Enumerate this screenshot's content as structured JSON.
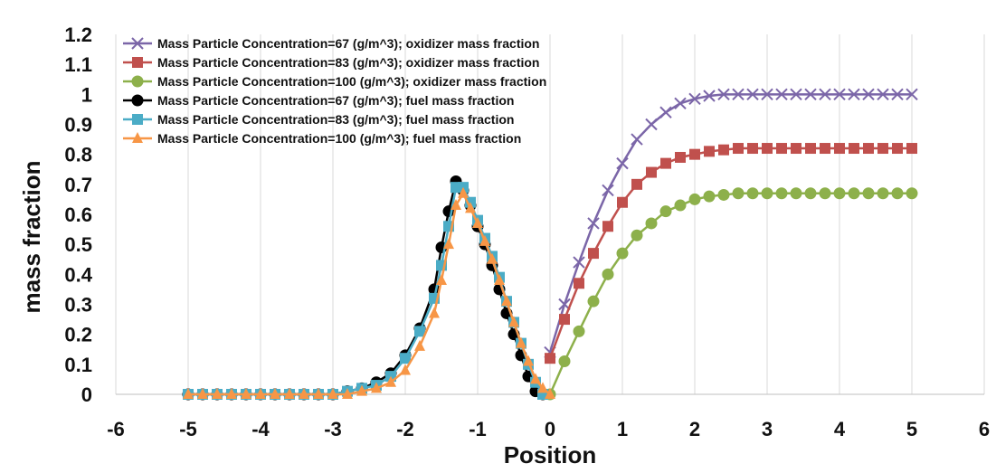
{
  "chart_data": {
    "type": "line",
    "xlabel": "Position",
    "ylabel": "mass fraction",
    "xlim": [
      -6,
      6
    ],
    "ylim": [
      0,
      1.2
    ],
    "xticks": [
      -6,
      -5,
      -4,
      -3,
      -2,
      -1,
      0,
      1,
      2,
      3,
      4,
      5,
      6
    ],
    "yticks": [
      0,
      0.1,
      0.2,
      0.3,
      0.4,
      0.5,
      0.6,
      0.7,
      0.8,
      0.9,
      1,
      1.1,
      1.2
    ],
    "ytick_labels": [
      "0",
      "0.1",
      "0.2",
      "0.3",
      "0.4",
      "0.5",
      "0.6",
      "0.7",
      "0.8",
      "0.9",
      "1",
      "1.1",
      "1.2"
    ],
    "grid": "vertical",
    "legend_position": "top-left",
    "series": [
      {
        "name": "Mass Particle Concentration=67 (g/m^3); oxidizer mass fraction",
        "color": "#7b66a8",
        "marker": "x",
        "x": [
          0,
          0.2,
          0.4,
          0.6,
          0.8,
          1.0,
          1.2,
          1.4,
          1.6,
          1.8,
          2.0,
          2.2,
          2.4,
          2.6,
          2.8,
          3.0,
          3.2,
          3.4,
          3.6,
          3.8,
          4.0,
          4.2,
          4.4,
          4.6,
          4.8,
          5.0
        ],
        "y": [
          0.14,
          0.3,
          0.44,
          0.57,
          0.68,
          0.77,
          0.85,
          0.9,
          0.94,
          0.97,
          0.985,
          0.995,
          1.0,
          1.0,
          1.0,
          1.0,
          1.0,
          1.0,
          1.0,
          1.0,
          1.0,
          1.0,
          1.0,
          1.0,
          1.0,
          1.0
        ]
      },
      {
        "name": "Mass Particle Concentration=83 (g/m^3); oxidizer mass fraction",
        "color": "#c0504d",
        "marker": "square",
        "x": [
          0,
          0.2,
          0.4,
          0.6,
          0.8,
          1.0,
          1.2,
          1.4,
          1.6,
          1.8,
          2.0,
          2.2,
          2.4,
          2.6,
          2.8,
          3.0,
          3.2,
          3.4,
          3.6,
          3.8,
          4.0,
          4.2,
          4.4,
          4.6,
          4.8,
          5.0
        ],
        "y": [
          0.12,
          0.25,
          0.37,
          0.47,
          0.56,
          0.64,
          0.7,
          0.74,
          0.77,
          0.79,
          0.8,
          0.81,
          0.815,
          0.82,
          0.82,
          0.82,
          0.82,
          0.82,
          0.82,
          0.82,
          0.82,
          0.82,
          0.82,
          0.82,
          0.82,
          0.82
        ]
      },
      {
        "name": "Mass Particle Concentration=100 (g/m^3); oxidizer mass fraction",
        "color": "#8db04b",
        "marker": "circle",
        "x": [
          0,
          0.2,
          0.4,
          0.6,
          0.8,
          1.0,
          1.2,
          1.4,
          1.6,
          1.8,
          2.0,
          2.2,
          2.4,
          2.6,
          2.8,
          3.0,
          3.2,
          3.4,
          3.6,
          3.8,
          4.0,
          4.2,
          4.4,
          4.6,
          4.8,
          5.0
        ],
        "y": [
          0.0,
          0.11,
          0.21,
          0.31,
          0.4,
          0.47,
          0.53,
          0.57,
          0.61,
          0.63,
          0.65,
          0.66,
          0.665,
          0.67,
          0.67,
          0.67,
          0.67,
          0.67,
          0.67,
          0.67,
          0.67,
          0.67,
          0.67,
          0.67,
          0.67,
          0.67
        ]
      },
      {
        "name": "Mass Particle Concentration=67 (g/m^3); fuel mass fraction",
        "color": "#000000",
        "marker": "circle",
        "x": [
          -5.0,
          -4.8,
          -4.6,
          -4.4,
          -4.2,
          -4.0,
          -3.8,
          -3.6,
          -3.4,
          -3.2,
          -3.0,
          -2.8,
          -2.6,
          -2.4,
          -2.2,
          -2.0,
          -1.8,
          -1.6,
          -1.5,
          -1.4,
          -1.3,
          -1.2,
          -1.1,
          -1.0,
          -0.9,
          -0.8,
          -0.7,
          -0.6,
          -0.5,
          -0.4,
          -0.3,
          -0.2,
          -0.1
        ],
        "y": [
          0.0,
          0.0,
          0.0,
          0.0,
          0.0,
          0.0,
          0.0,
          0.0,
          0.0,
          0.0,
          0.0,
          0.01,
          0.02,
          0.04,
          0.07,
          0.13,
          0.22,
          0.35,
          0.49,
          0.61,
          0.71,
          0.68,
          0.63,
          0.56,
          0.5,
          0.43,
          0.35,
          0.27,
          0.2,
          0.13,
          0.06,
          0.01,
          0.0
        ]
      },
      {
        "name": "Mass Particle Concentration=83 (g/m^3); fuel mass fraction",
        "color": "#4bacc6",
        "marker": "square",
        "x": [
          -5.0,
          -4.8,
          -4.6,
          -4.4,
          -4.2,
          -4.0,
          -3.8,
          -3.6,
          -3.4,
          -3.2,
          -3.0,
          -2.8,
          -2.6,
          -2.4,
          -2.2,
          -2.0,
          -1.8,
          -1.6,
          -1.5,
          -1.4,
          -1.3,
          -1.2,
          -1.1,
          -1.0,
          -0.9,
          -0.8,
          -0.7,
          -0.6,
          -0.5,
          -0.4,
          -0.3,
          -0.2,
          -0.1
        ],
        "y": [
          0.0,
          0.0,
          0.0,
          0.0,
          0.0,
          0.0,
          0.0,
          0.0,
          0.0,
          0.0,
          0.0,
          0.01,
          0.02,
          0.03,
          0.06,
          0.12,
          0.21,
          0.32,
          0.43,
          0.56,
          0.69,
          0.69,
          0.64,
          0.58,
          0.52,
          0.46,
          0.39,
          0.31,
          0.24,
          0.17,
          0.1,
          0.04,
          0.0
        ]
      },
      {
        "name": "Mass Particle Concentration=100 (g/m^3); fuel mass fraction",
        "color": "#f79646",
        "marker": "triangle",
        "x": [
          -5.0,
          -4.8,
          -4.6,
          -4.4,
          -4.2,
          -4.0,
          -3.8,
          -3.6,
          -3.4,
          -3.2,
          -3.0,
          -2.8,
          -2.6,
          -2.4,
          -2.2,
          -2.0,
          -1.8,
          -1.6,
          -1.5,
          -1.4,
          -1.3,
          -1.2,
          -1.1,
          -1.0,
          -0.9,
          -0.8,
          -0.7,
          -0.6,
          -0.5,
          -0.4,
          -0.3,
          -0.2,
          -0.1,
          0.0
        ],
        "y": [
          0.0,
          0.0,
          0.0,
          0.0,
          0.0,
          0.0,
          0.0,
          0.0,
          0.0,
          0.0,
          0.0,
          0.0,
          0.01,
          0.02,
          0.04,
          0.08,
          0.16,
          0.27,
          0.38,
          0.5,
          0.63,
          0.67,
          0.62,
          0.57,
          0.51,
          0.45,
          0.38,
          0.31,
          0.24,
          0.17,
          0.11,
          0.05,
          0.02,
          0.0
        ]
      }
    ]
  }
}
